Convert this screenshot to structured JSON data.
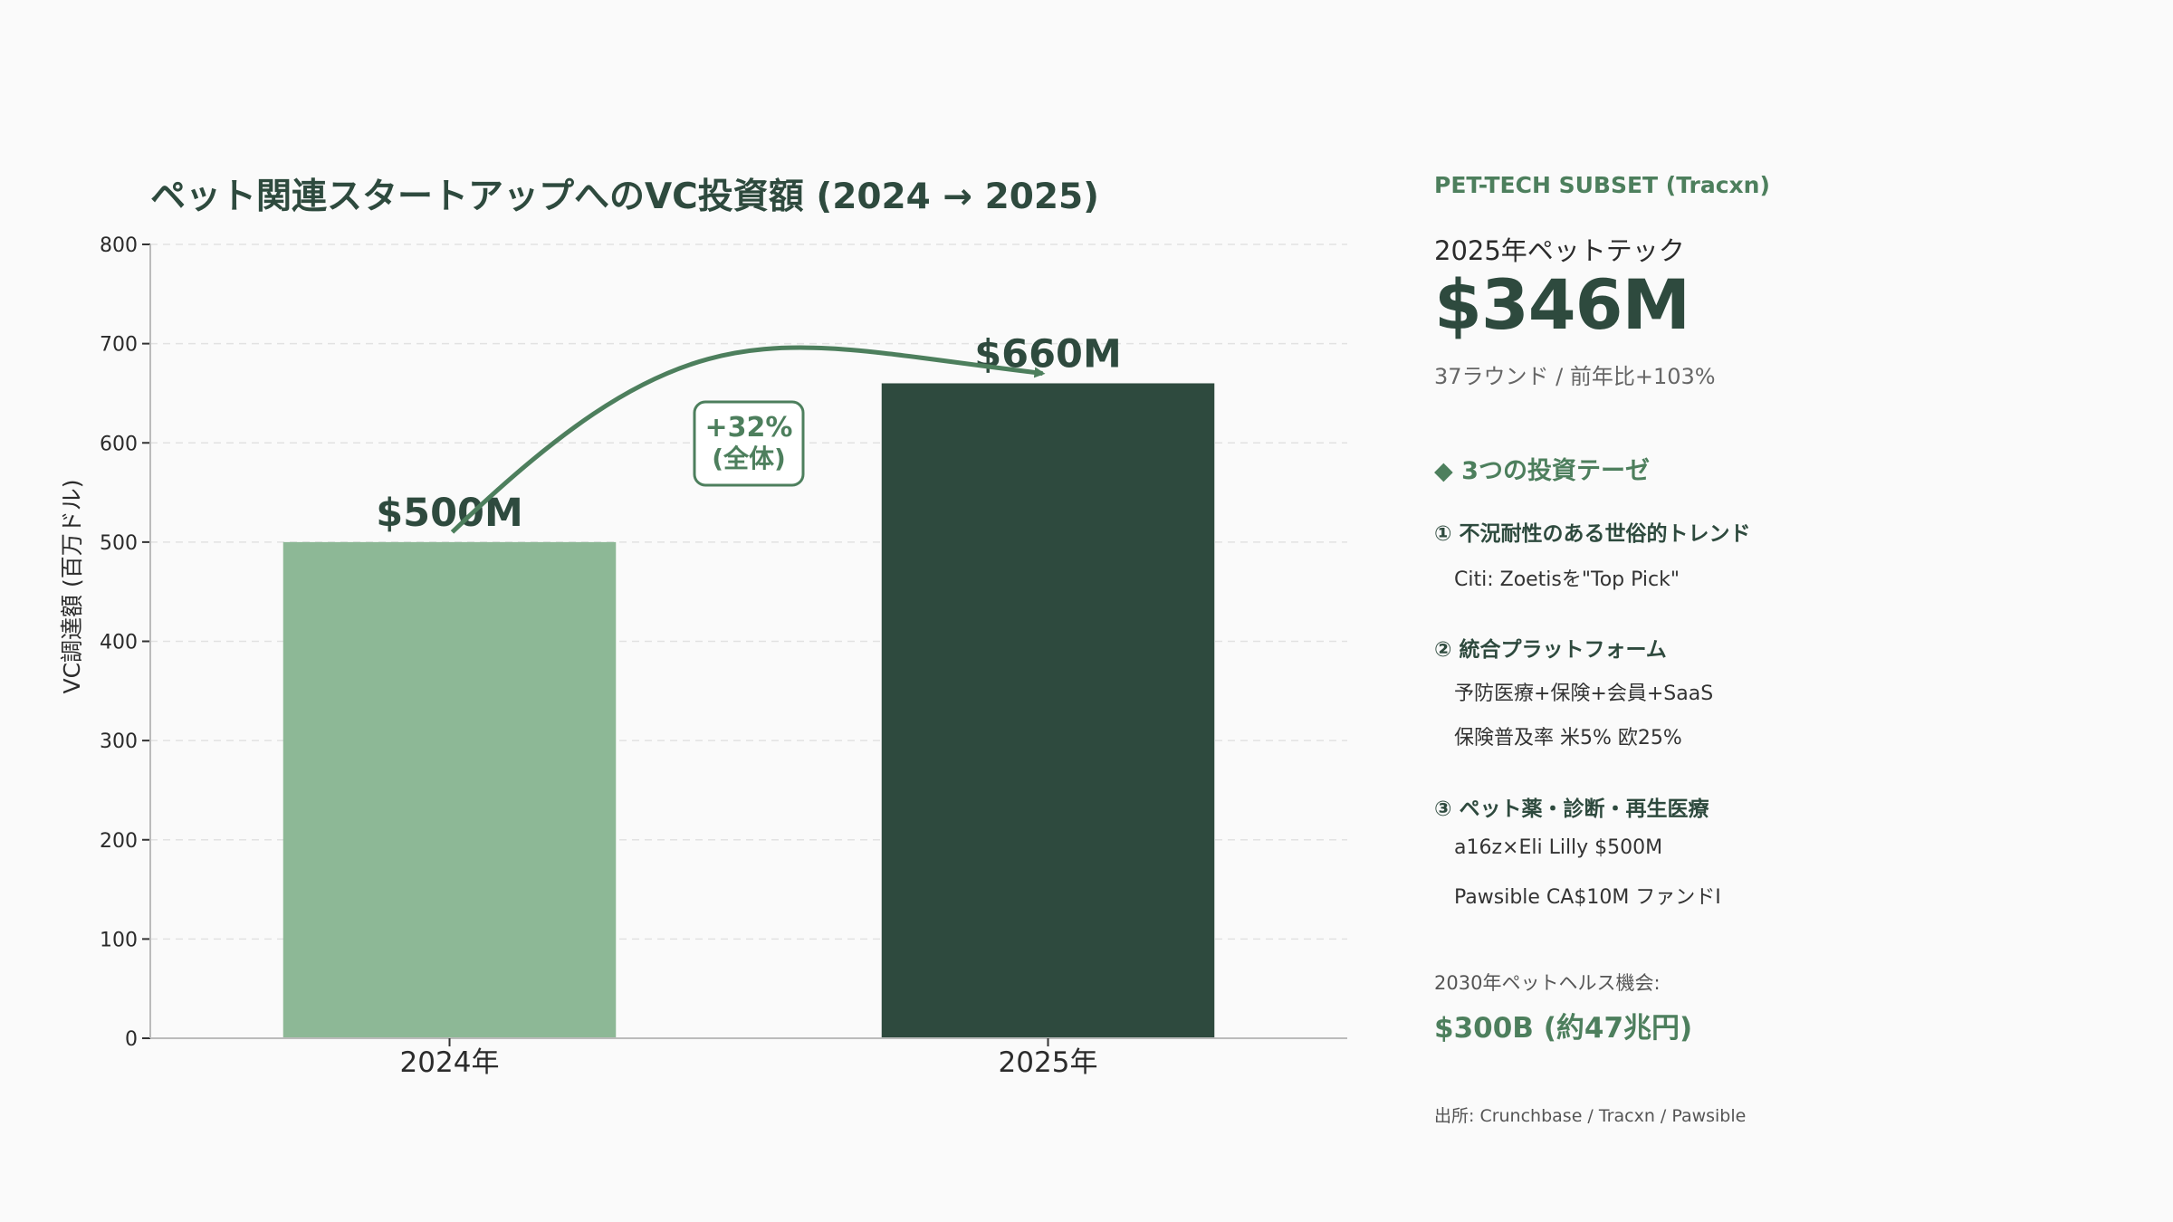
{
  "colors": {
    "bar_2024": "#8db896",
    "bar_2025": "#2e4a3e",
    "accent": "#4d7f5d",
    "text_dark": "#2e4a3e",
    "grid": "#e2e2e2",
    "axis": "#bbbbbb"
  },
  "chart_data": {
    "type": "bar",
    "title": "ペット関連スタートアップへのVC投資額 (2024 → 2025)",
    "xlabel": "",
    "ylabel": "VC調達額 (百万ドル)",
    "categories": [
      "2024年",
      "2025年"
    ],
    "values": [
      500,
      660
    ],
    "data_labels": [
      "$500M",
      "$660M"
    ],
    "ylim": [
      0,
      800
    ],
    "yticks": [
      0,
      100,
      200,
      300,
      400,
      500,
      600,
      700,
      800
    ],
    "grid": true,
    "annotation": {
      "line1": "+32%",
      "line2": "(全体)"
    }
  },
  "sidebar": {
    "tag": "PET-TECH SUBSET (Tracxn)",
    "subtitle": "2025年ペットテック",
    "big_value": "$346M",
    "meta": "37ラウンド / 前年比+103%",
    "thesis_header": "◆ 3つの投資テーゼ",
    "theses": [
      {
        "title": "① 不況耐性のある世俗的トレンド",
        "lines": [
          "Citi: Zoetisを\"Top Pick\""
        ]
      },
      {
        "title": "② 統合プラットフォーム",
        "lines": [
          "予防医療+保険+会員+SaaS",
          "保険普及率 米5% 欧25%"
        ]
      },
      {
        "title": "③ ペット薬・診断・再生医療",
        "lines": [
          "a16z×Eli Lilly $500M",
          "Pawsible CA$10M ファンドI"
        ]
      }
    ],
    "opportunity_label": "2030年ペットヘルス機会:",
    "opportunity_value": "$300B (約47兆円)",
    "source": "出所: Crunchbase / Tracxn / Pawsible"
  }
}
